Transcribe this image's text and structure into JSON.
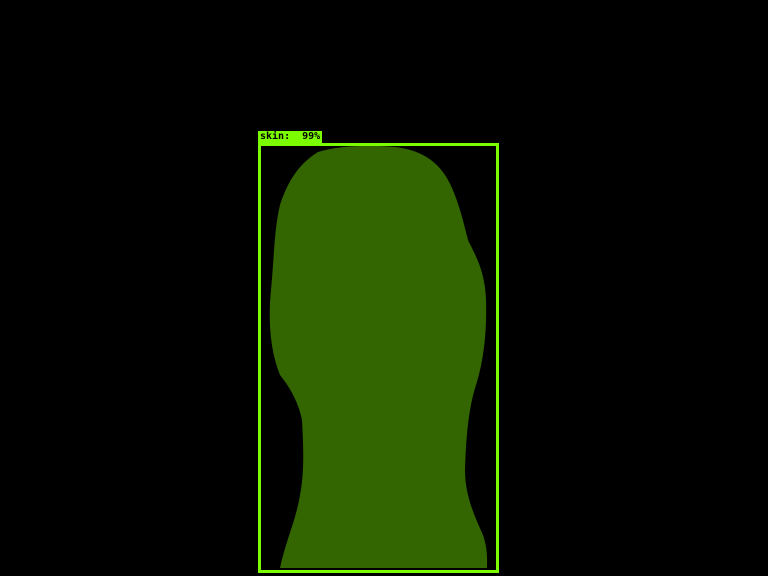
{
  "detection": {
    "label": "skin",
    "score": "99%",
    "label_text": "skin:  99%"
  },
  "colors": {
    "background": "#000000",
    "box": "#7cfc00",
    "mask": "#336600",
    "label_text": "#000000"
  }
}
